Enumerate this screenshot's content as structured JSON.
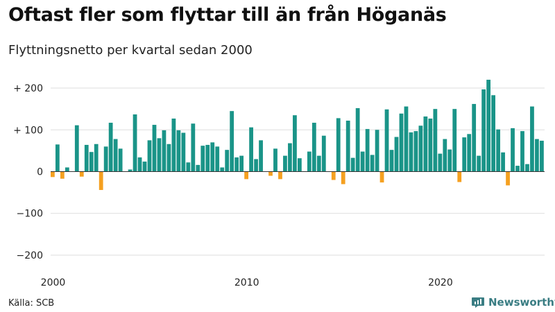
{
  "title": "Oftast fler som flyttar till än från Höganäs",
  "subtitle": "Flyttningsnetto per kvartal sedan 2000",
  "source": "Källa: SCB",
  "brand": {
    "name": "Newsworthy",
    "icon": "newsworthy-logo-icon"
  },
  "colors": {
    "positive": "#1a9488",
    "negative": "#f5a020",
    "grid": "#dddddd",
    "zero": "#333333"
  },
  "chart_data": {
    "type": "bar",
    "x_start": "2000 Q1",
    "xticks": [
      {
        "label": "2000",
        "index": 0
      },
      {
        "label": "2010",
        "index": 40
      },
      {
        "label": "2020",
        "index": 80
      }
    ],
    "ylim": [
      -220,
      225
    ],
    "yticks": [
      {
        "value": 200,
        "label": "+ 200"
      },
      {
        "value": 100,
        "label": "+ 100"
      },
      {
        "value": 0,
        "label": "0"
      },
      {
        "value": -100,
        "label": "−100"
      },
      {
        "value": -200,
        "label": "−200"
      }
    ],
    "grid": true,
    "values": [
      -13,
      65,
      -17,
      10,
      0,
      111,
      -12,
      64,
      47,
      66,
      -44,
      60,
      117,
      78,
      55,
      0,
      5,
      137,
      34,
      24,
      75,
      112,
      80,
      99,
      66,
      127,
      99,
      93,
      22,
      115,
      16,
      62,
      64,
      70,
      60,
      10,
      52,
      145,
      34,
      38,
      -18,
      106,
      30,
      75,
      0,
      -10,
      55,
      -18,
      38,
      68,
      135,
      32,
      1,
      48,
      117,
      38,
      86,
      0,
      -20,
      128,
      -30,
      122,
      33,
      152,
      48,
      102,
      40,
      100,
      -26,
      149,
      52,
      83,
      139,
      156,
      94,
      97,
      110,
      132,
      127,
      150,
      43,
      78,
      53,
      150,
      -25,
      82,
      90,
      162,
      38,
      197,
      220,
      183,
      101,
      46,
      -33,
      104,
      14,
      97,
      18,
      156,
      78,
      74
    ]
  }
}
